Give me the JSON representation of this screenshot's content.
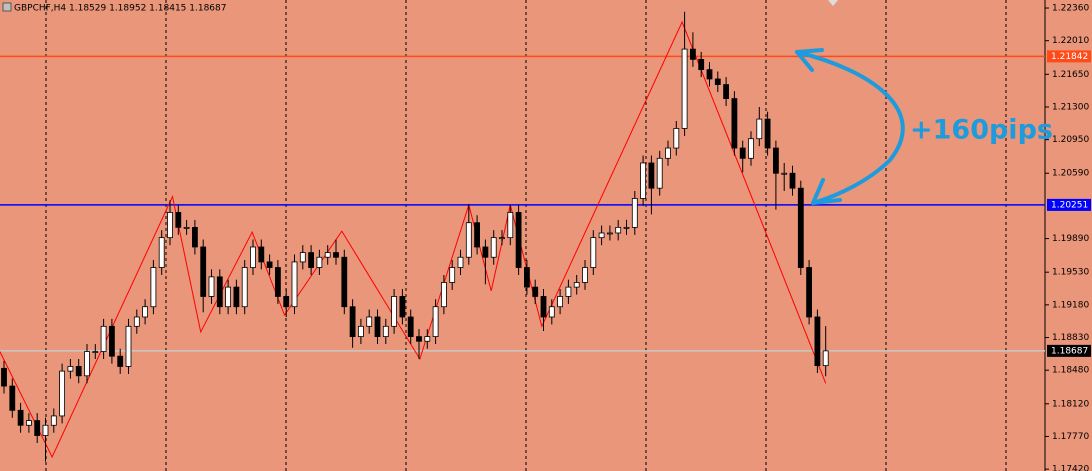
{
  "chart_data": {
    "type": "candlestick",
    "title": "GBPCHF,H4  1.18529 1.18952 1.18415 1.18687",
    "annotation": "+160pips",
    "ylim": [
      1.174,
      1.22446
    ],
    "yticks": [
      {
        "value": 1.2236,
        "label": "1.22360"
      },
      {
        "value": 1.2201,
        "label": "1.22010"
      },
      {
        "value": 1.2165,
        "label": "1.21650"
      },
      {
        "value": 1.213,
        "label": "1.21300"
      },
      {
        "value": 1.2095,
        "label": "1.20950"
      },
      {
        "value": 1.2059,
        "label": "1.20590"
      },
      {
        "value": 1.1989,
        "label": "1.19890"
      },
      {
        "value": 1.1953,
        "label": "1.19530"
      },
      {
        "value": 1.1918,
        "label": "1.19180"
      },
      {
        "value": 1.1883,
        "label": "1.18830"
      },
      {
        "value": 1.1848,
        "label": "1.18480"
      },
      {
        "value": 1.1812,
        "label": "1.18120"
      },
      {
        "value": 1.1777,
        "label": "1.17770"
      },
      {
        "value": 1.1742,
        "label": "1.17420"
      }
    ],
    "levels": [
      {
        "value": 1.21842,
        "color": "#ff4b19"
      },
      {
        "value": 1.20251,
        "color": "#0000ff"
      },
      {
        "value": 1.18687,
        "color": "#c8c8c8"
      }
    ],
    "zigzag": {
      "color": "#ff0000",
      "x": [
        -0.5,
        5.8,
        20.3,
        23.7,
        29.9,
        33.8,
        40.7,
        50.1,
        56,
        58.7,
        61,
        64.8,
        81.7,
        99
      ],
      "values": [
        1.1868,
        1.1755,
        1.2034,
        1.1889,
        1.1996,
        1.1907,
        1.1997,
        1.186,
        1.2025,
        1.1933,
        1.2025,
        1.1895,
        1.2221,
        1.1834
      ]
    },
    "ohlc": [
      [
        1.185,
        1.1858,
        1.1823,
        1.1831
      ],
      [
        1.1831,
        1.1839,
        1.1797,
        1.1805
      ],
      [
        1.1805,
        1.1813,
        1.1781,
        1.1789
      ],
      [
        1.1789,
        1.1802,
        1.1781,
        1.1794
      ],
      [
        1.1794,
        1.1802,
        1.177,
        1.1778
      ],
      [
        1.1778,
        1.1797,
        1.175,
        1.1789
      ],
      [
        1.1789,
        1.1807,
        1.1781,
        1.1799
      ],
      [
        1.1799,
        1.1855,
        1.1791,
        1.1847
      ],
      [
        1.1847,
        1.186,
        1.1839,
        1.1852
      ],
      [
        1.1852,
        1.186,
        1.1834,
        1.1842
      ],
      [
        1.1842,
        1.1876,
        1.1834,
        1.1868
      ],
      [
        1.1868,
        1.1876,
        1.186,
        1.1868
      ],
      [
        1.1868,
        1.1903,
        1.186,
        1.1895
      ],
      [
        1.1895,
        1.1903,
        1.1855,
        1.1863
      ],
      [
        1.1863,
        1.1871,
        1.1844,
        1.1852
      ],
      [
        1.1852,
        1.1903,
        1.1844,
        1.1895
      ],
      [
        1.1895,
        1.1913,
        1.1887,
        1.1905
      ],
      [
        1.1905,
        1.1924,
        1.1897,
        1.1916
      ],
      [
        1.1916,
        1.1966,
        1.1908,
        1.1958
      ],
      [
        1.1958,
        1.1998,
        1.195,
        1.199
      ],
      [
        1.199,
        1.203,
        1.1982,
        1.2017
      ],
      [
        1.2017,
        1.2025,
        1.1993,
        1.2001
      ],
      [
        1.2001,
        1.2009,
        1.1993,
        1.2001
      ],
      [
        1.2001,
        1.2009,
        1.1972,
        1.198
      ],
      [
        1.198,
        1.1988,
        1.191,
        1.1927
      ],
      [
        1.1927,
        1.1956,
        1.1919,
        1.1948
      ],
      [
        1.1948,
        1.1956,
        1.1908,
        1.1916
      ],
      [
        1.1916,
        1.1945,
        1.1908,
        1.1937
      ],
      [
        1.1937,
        1.1945,
        1.1908,
        1.1916
      ],
      [
        1.1916,
        1.1966,
        1.1908,
        1.1958
      ],
      [
        1.1958,
        1.1988,
        1.195,
        1.198
      ],
      [
        1.198,
        1.1988,
        1.1956,
        1.1964
      ],
      [
        1.1964,
        1.1972,
        1.195,
        1.1958
      ],
      [
        1.1958,
        1.1966,
        1.1919,
        1.1927
      ],
      [
        1.1927,
        1.1935,
        1.1905,
        1.1916
      ],
      [
        1.1916,
        1.1972,
        1.1908,
        1.1964
      ],
      [
        1.1964,
        1.1982,
        1.1956,
        1.1974
      ],
      [
        1.1974,
        1.1982,
        1.195,
        1.1958
      ],
      [
        1.1958,
        1.1977,
        1.195,
        1.1969
      ],
      [
        1.1969,
        1.1982,
        1.1961,
        1.1974
      ],
      [
        1.1974,
        1.1988,
        1.1961,
        1.1969
      ],
      [
        1.1969,
        1.1977,
        1.1908,
        1.1916
      ],
      [
        1.1916,
        1.1924,
        1.1872,
        1.1884
      ],
      [
        1.1884,
        1.1903,
        1.1876,
        1.1895
      ],
      [
        1.1895,
        1.1913,
        1.1887,
        1.1905
      ],
      [
        1.1905,
        1.1913,
        1.1876,
        1.1884
      ],
      [
        1.1884,
        1.1903,
        1.1876,
        1.1895
      ],
      [
        1.1895,
        1.1935,
        1.1887,
        1.1927
      ],
      [
        1.1927,
        1.1935,
        1.1897,
        1.1905
      ],
      [
        1.1905,
        1.1913,
        1.1876,
        1.1884
      ],
      [
        1.1884,
        1.1892,
        1.186,
        1.1879
      ],
      [
        1.1879,
        1.1892,
        1.1871,
        1.1884
      ],
      [
        1.1884,
        1.1924,
        1.1876,
        1.1916
      ],
      [
        1.1916,
        1.195,
        1.1908,
        1.1942
      ],
      [
        1.1942,
        1.1966,
        1.1934,
        1.1958
      ],
      [
        1.1958,
        1.1977,
        1.195,
        1.1969
      ],
      [
        1.1969,
        1.2026,
        1.1961,
        1.2006
      ],
      [
        1.2006,
        1.2014,
        1.1972,
        1.198
      ],
      [
        1.198,
        1.1988,
        1.194,
        1.1969
      ],
      [
        1.1969,
        1.1998,
        1.1961,
        1.199
      ],
      [
        1.199,
        1.1998,
        1.1982,
        1.199
      ],
      [
        1.199,
        1.2025,
        1.1982,
        1.2017
      ],
      [
        1.2017,
        1.2025,
        1.195,
        1.1958
      ],
      [
        1.1958,
        1.1966,
        1.1929,
        1.1937
      ],
      [
        1.1937,
        1.1945,
        1.1919,
        1.1927
      ],
      [
        1.1927,
        1.1935,
        1.189,
        1.1905
      ],
      [
        1.1905,
        1.1924,
        1.1897,
        1.1916
      ],
      [
        1.1916,
        1.1935,
        1.1908,
        1.1927
      ],
      [
        1.1927,
        1.1945,
        1.1919,
        1.1937
      ],
      [
        1.1937,
        1.195,
        1.1929,
        1.1942
      ],
      [
        1.1942,
        1.1966,
        1.1934,
        1.1958
      ],
      [
        1.1958,
        1.1998,
        1.195,
        1.199
      ],
      [
        1.199,
        1.2003,
        1.1982,
        1.1995
      ],
      [
        1.1995,
        1.2003,
        1.1987,
        1.1995
      ],
      [
        1.1995,
        1.2009,
        1.1987,
        1.2001
      ],
      [
        1.2001,
        1.2009,
        1.1993,
        1.2001
      ],
      [
        1.2001,
        1.204,
        1.1993,
        1.2032
      ],
      [
        1.2032,
        1.2078,
        1.2024,
        1.207
      ],
      [
        1.207,
        1.2078,
        1.2015,
        1.2043
      ],
      [
        1.2043,
        1.2083,
        1.2035,
        1.2075
      ],
      [
        1.2075,
        1.2094,
        1.2067,
        1.2086
      ],
      [
        1.2086,
        1.2115,
        1.2078,
        1.2107
      ],
      [
        1.2107,
        1.2232,
        1.2099,
        1.2192
      ],
      [
        1.2192,
        1.221,
        1.2173,
        1.2181
      ],
      [
        1.2181,
        1.2189,
        1.2162,
        1.217
      ],
      [
        1.217,
        1.2178,
        1.2152,
        1.216
      ],
      [
        1.216,
        1.2168,
        1.2146,
        1.2154
      ],
      [
        1.2154,
        1.2162,
        1.2131,
        1.2139
      ],
      [
        1.2139,
        1.2147,
        1.2078,
        1.2086
      ],
      [
        1.2086,
        1.2094,
        1.206,
        1.2075
      ],
      [
        1.2075,
        1.2104,
        1.2067,
        1.2096
      ],
      [
        1.2096,
        1.213,
        1.2088,
        1.2117
      ],
      [
        1.2117,
        1.2125,
        1.2078,
        1.2086
      ],
      [
        1.2086,
        1.2094,
        1.202,
        1.2059
      ],
      [
        1.2059,
        1.207,
        1.204,
        1.2059
      ],
      [
        1.2059,
        1.2067,
        1.2035,
        1.2043
      ],
      [
        1.2043,
        1.2051,
        1.195,
        1.1958
      ],
      [
        1.1958,
        1.1966,
        1.1897,
        1.1905
      ],
      [
        1.1905,
        1.1913,
        1.1845,
        1.18529
      ],
      [
        1.18529,
        1.18952,
        1.18415,
        1.18687
      ]
    ]
  }
}
